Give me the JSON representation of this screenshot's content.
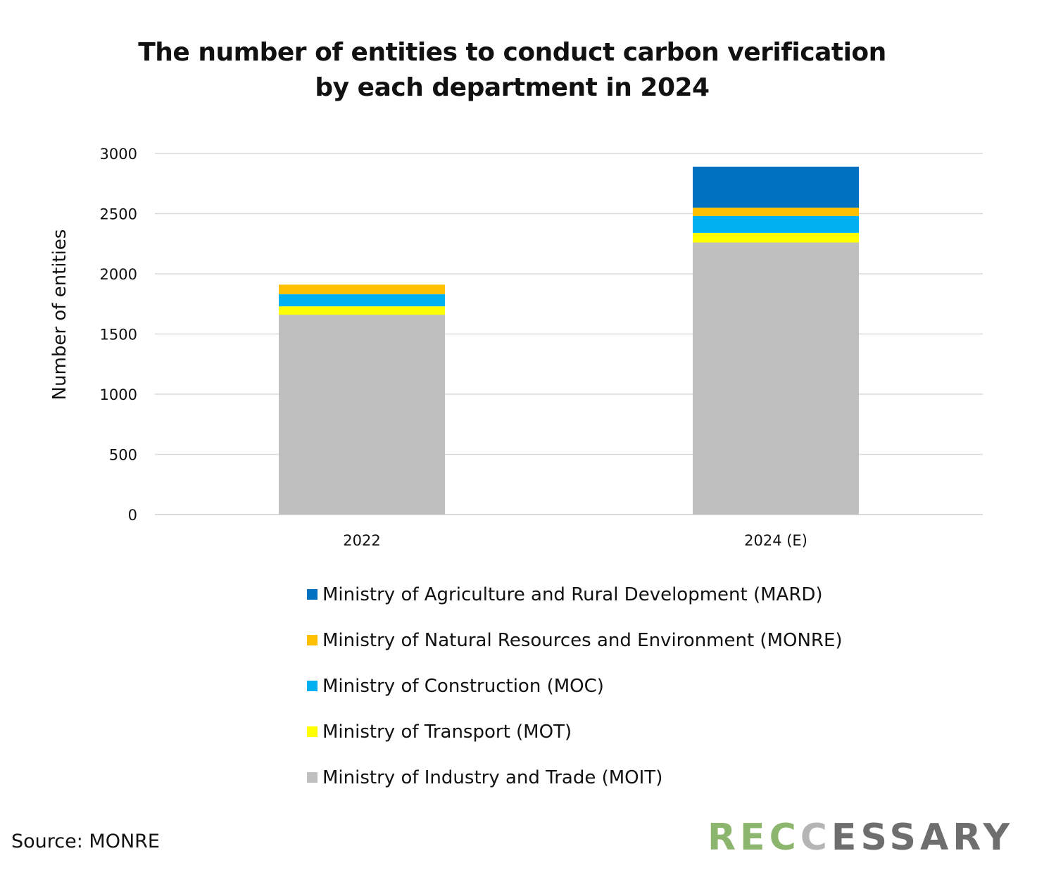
{
  "chart_data": {
    "type": "bar",
    "stacked": true,
    "title_lines": [
      "The number of entities to conduct carbon verification",
      "by each department in 2024"
    ],
    "ylabel": "Number of entities",
    "ylim": [
      0,
      3000
    ],
    "yticks": [
      0,
      500,
      1000,
      1500,
      2000,
      2500,
      3000
    ],
    "grid": true,
    "legend_position": "bottom",
    "categories": [
      "2022",
      "2024 (E)"
    ],
    "series": [
      {
        "name": "Ministry of Industry and Trade (MOIT)",
        "color": "#bfbfbf",
        "values": [
          1660,
          2260
        ]
      },
      {
        "name": "Ministry of Transport (MOT)",
        "color": "#ffff00",
        "values": [
          70,
          80
        ]
      },
      {
        "name": "Ministry of Construction (MOC)",
        "color": "#00b0f0",
        "values": [
          100,
          140
        ]
      },
      {
        "name": "Ministry of Natural Resources and Environment (MONRE)",
        "color": "#ffc000",
        "values": [
          80,
          70
        ]
      },
      {
        "name": "Ministry of Agriculture and Rural Development (MARD)",
        "color": "#0070c0",
        "values": [
          0,
          340
        ]
      }
    ]
  },
  "source": "Source: MONRE",
  "logo": {
    "part1": "R",
    "part2": "E",
    "part3": "C",
    "part4": "C",
    "part5": "ESSARY"
  }
}
